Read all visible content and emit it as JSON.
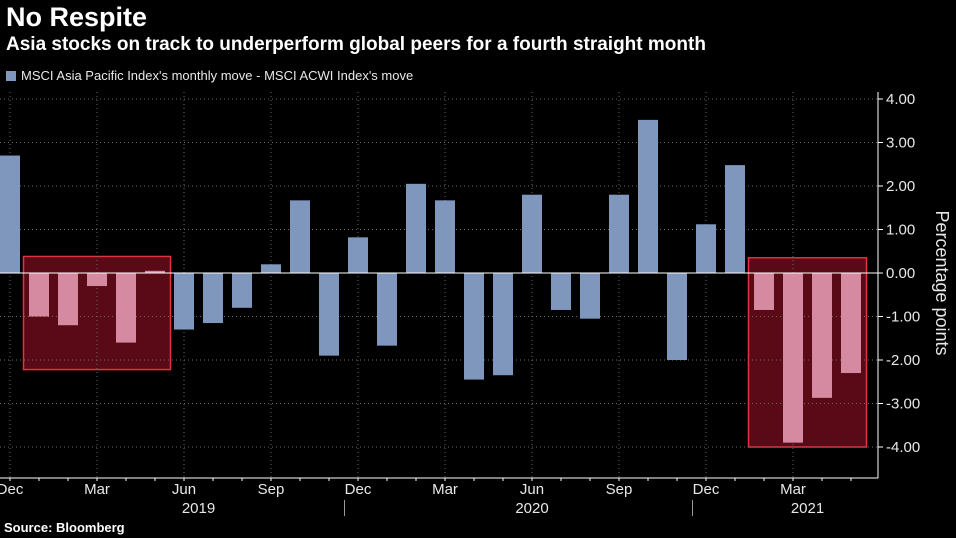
{
  "title": "No Respite",
  "subtitle": "Asia stocks on track to underperform global peers for a fourth straight month",
  "source": "Source: Bloomberg",
  "colors": {
    "background": "#000000",
    "bar": "#7f97bd",
    "highlight_bar": "#d58aa2",
    "highlight_fill": "#5a0a16",
    "highlight_stroke": "#e0323f",
    "grid": "#6a6a6a"
  },
  "chart_data": {
    "type": "bar",
    "legend": [
      "MSCI Asia Pacific Index's monthly move - MSCI ACWI Index's move"
    ],
    "legend_placement": "top-left",
    "ylabel": "Percentage points",
    "ylim": [
      -4.4,
      4.4
    ],
    "y_ticks": [
      "4.00",
      "3.00",
      "2.00",
      "1.00",
      "0.00",
      "-1.00",
      "-2.00",
      "-3.00",
      "-4.00"
    ],
    "y_tick_values": [
      4,
      3,
      2,
      1,
      0,
      -1,
      -2,
      -3,
      -4
    ],
    "grid": true,
    "x_tick_labels": [
      "Dec",
      "Mar",
      "Jun",
      "Sep",
      "Dec",
      "Mar",
      "Jun",
      "Sep",
      "Dec",
      "Mar"
    ],
    "x_tick_positions": [
      0,
      3,
      6,
      9,
      12,
      15,
      18,
      21,
      24,
      27
    ],
    "x_year_labels": [
      "2019",
      "2020",
      "2021"
    ],
    "x_year_positions": [
      6.5,
      18,
      27.5
    ],
    "categories": [
      "Dec 2018",
      "Jan 2019",
      "Feb 2019",
      "Mar 2019",
      "Apr 2019",
      "May 2019",
      "Jun 2019",
      "Jul 2019",
      "Aug 2019",
      "Sep 2019",
      "Oct 2019",
      "Nov 2019",
      "Dec 2019",
      "Jan 2020",
      "Feb 2020",
      "Mar 2020",
      "Apr 2020",
      "May 2020",
      "Jun 2020",
      "Jul 2020",
      "Aug 2020",
      "Sep 2020",
      "Oct 2020",
      "Nov 2020",
      "Dec 2020",
      "Jan 2021",
      "Feb 2021",
      "Mar 2021",
      "Apr 2021",
      "May 2021"
    ],
    "values": [
      2.7,
      -1.0,
      -1.2,
      -0.3,
      -1.6,
      0.05,
      -1.3,
      -1.15,
      -0.8,
      0.2,
      1.67,
      -1.9,
      0.82,
      -1.67,
      2.05,
      1.67,
      -2.45,
      -2.35,
      1.8,
      -0.85,
      -1.05,
      1.8,
      3.52,
      -2.0,
      1.12,
      2.48,
      -0.85,
      -3.9,
      -2.87,
      -2.3
    ],
    "highlight_ranges": [
      {
        "from": 1,
        "to": 5,
        "ymin": -2.22,
        "ymax": 0.38
      },
      {
        "from": 26,
        "to": 29,
        "ymin": -4.0,
        "ymax": 0.35
      }
    ]
  }
}
